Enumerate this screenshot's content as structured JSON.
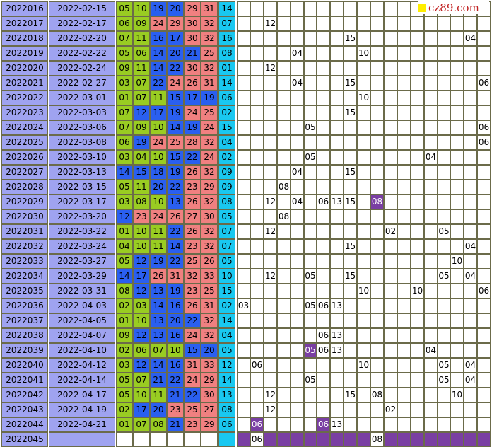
{
  "watermark": "cz89.com",
  "rows": [
    {
      "issue": "2022016",
      "date": "2022-02-15",
      "nums": [
        "05",
        "10",
        "19",
        "20",
        "29",
        "31"
      ],
      "cls": [
        "g",
        "g",
        "b",
        "b",
        "r",
        "r"
      ],
      "blue": "14",
      "hits": []
    },
    {
      "issue": "2022017",
      "date": "2022-02-17",
      "nums": [
        "06",
        "09",
        "24",
        "29",
        "30",
        "32"
      ],
      "cls": [
        "g",
        "g",
        "r",
        "r",
        "r",
        "r"
      ],
      "blue": "07",
      "hits": [
        {
          "col": 2,
          "v": "12"
        }
      ]
    },
    {
      "issue": "2022018",
      "date": "2022-02-20",
      "nums": [
        "07",
        "11",
        "16",
        "17",
        "30",
        "32"
      ],
      "cls": [
        "g",
        "g",
        "b",
        "b",
        "r",
        "r"
      ],
      "blue": "16",
      "hits": [
        {
          "col": 8,
          "v": "15"
        },
        {
          "col": 17,
          "v": "04"
        }
      ]
    },
    {
      "issue": "2022019",
      "date": "2022-02-22",
      "nums": [
        "05",
        "06",
        "14",
        "20",
        "21",
        "25"
      ],
      "cls": [
        "g",
        "g",
        "b",
        "b",
        "b",
        "r"
      ],
      "blue": "08",
      "hits": [
        {
          "col": 4,
          "v": "04"
        },
        {
          "col": 9,
          "v": "10"
        }
      ]
    },
    {
      "issue": "2022020",
      "date": "2022-02-24",
      "nums": [
        "09",
        "11",
        "14",
        "22",
        "30",
        "32"
      ],
      "cls": [
        "g",
        "g",
        "b",
        "b",
        "r",
        "r"
      ],
      "blue": "01",
      "hits": [
        {
          "col": 2,
          "v": "12"
        }
      ]
    },
    {
      "issue": "2022021",
      "date": "2022-02-27",
      "nums": [
        "03",
        "07",
        "22",
        "24",
        "26",
        "31"
      ],
      "cls": [
        "g",
        "g",
        "b",
        "r",
        "r",
        "r"
      ],
      "blue": "14",
      "hits": [
        {
          "col": 4,
          "v": "04"
        },
        {
          "col": 8,
          "v": "15"
        },
        {
          "col": 18,
          "v": "06"
        }
      ]
    },
    {
      "issue": "2022022",
      "date": "2022-03-01",
      "nums": [
        "01",
        "07",
        "11",
        "15",
        "17",
        "19"
      ],
      "cls": [
        "g",
        "g",
        "g",
        "b",
        "b",
        "b"
      ],
      "blue": "06",
      "hits": [
        {
          "col": 9,
          "v": "10"
        }
      ]
    },
    {
      "issue": "2022023",
      "date": "2022-03-03",
      "nums": [
        "07",
        "12",
        "17",
        "19",
        "24",
        "25"
      ],
      "cls": [
        "g",
        "b",
        "b",
        "b",
        "r",
        "r"
      ],
      "blue": "02",
      "hits": [
        {
          "col": 8,
          "v": "15"
        }
      ]
    },
    {
      "issue": "2022024",
      "date": "2022-03-06",
      "nums": [
        "07",
        "09",
        "10",
        "14",
        "19",
        "24"
      ],
      "cls": [
        "g",
        "g",
        "g",
        "b",
        "b",
        "r"
      ],
      "blue": "15",
      "hits": [
        {
          "col": 5,
          "v": "05"
        },
        {
          "col": 18,
          "v": "06"
        }
      ]
    },
    {
      "issue": "2022025",
      "date": "2022-03-08",
      "nums": [
        "06",
        "19",
        "24",
        "25",
        "28",
        "32"
      ],
      "cls": [
        "g",
        "b",
        "r",
        "r",
        "r",
        "r"
      ],
      "blue": "04",
      "hits": [
        {
          "col": 18,
          "v": "06"
        }
      ]
    },
    {
      "issue": "2022026",
      "date": "2022-03-10",
      "nums": [
        "03",
        "04",
        "10",
        "15",
        "22",
        "24"
      ],
      "cls": [
        "g",
        "g",
        "g",
        "b",
        "b",
        "r"
      ],
      "blue": "02",
      "hits": [
        {
          "col": 5,
          "v": "05"
        },
        {
          "col": 14,
          "v": "04"
        }
      ]
    },
    {
      "issue": "2022027",
      "date": "2022-03-13",
      "nums": [
        "14",
        "15",
        "18",
        "19",
        "26",
        "32"
      ],
      "cls": [
        "b",
        "b",
        "b",
        "b",
        "r",
        "r"
      ],
      "blue": "09",
      "hits": [
        {
          "col": 4,
          "v": "04"
        },
        {
          "col": 8,
          "v": "15"
        }
      ]
    },
    {
      "issue": "2022028",
      "date": "2022-03-15",
      "nums": [
        "05",
        "11",
        "20",
        "22",
        "23",
        "29"
      ],
      "cls": [
        "g",
        "g",
        "b",
        "b",
        "r",
        "r"
      ],
      "blue": "09",
      "hits": [
        {
          "col": 3,
          "v": "08"
        }
      ]
    },
    {
      "issue": "2022029",
      "date": "2022-03-17",
      "nums": [
        "03",
        "08",
        "10",
        "13",
        "26",
        "32"
      ],
      "cls": [
        "g",
        "g",
        "g",
        "b",
        "r",
        "r"
      ],
      "blue": "08",
      "hits": [
        {
          "col": 2,
          "v": "12"
        },
        {
          "col": 4,
          "v": "04"
        },
        {
          "col": 6,
          "v": "06"
        },
        {
          "col": 7,
          "v": "13"
        },
        {
          "col": 8,
          "v": "15"
        },
        {
          "col": 10,
          "v": "08",
          "hl": true
        }
      ]
    },
    {
      "issue": "2022030",
      "date": "2022-03-20",
      "nums": [
        "12",
        "23",
        "24",
        "26",
        "27",
        "30"
      ],
      "cls": [
        "b",
        "r",
        "r",
        "r",
        "r",
        "r"
      ],
      "blue": "05",
      "hits": [
        {
          "col": 3,
          "v": "08"
        }
      ]
    },
    {
      "issue": "2022031",
      "date": "2022-03-22",
      "nums": [
        "01",
        "10",
        "11",
        "22",
        "26",
        "32"
      ],
      "cls": [
        "g",
        "g",
        "g",
        "b",
        "r",
        "r"
      ],
      "blue": "07",
      "hits": [
        {
          "col": 2,
          "v": "12"
        },
        {
          "col": 11,
          "v": "02"
        },
        {
          "col": 15,
          "v": "05"
        }
      ]
    },
    {
      "issue": "2022032",
      "date": "2022-03-24",
      "nums": [
        "04",
        "10",
        "11",
        "14",
        "23",
        "32"
      ],
      "cls": [
        "g",
        "g",
        "g",
        "b",
        "r",
        "r"
      ],
      "blue": "07",
      "hits": [
        {
          "col": 8,
          "v": "15"
        },
        {
          "col": 17,
          "v": "04"
        }
      ]
    },
    {
      "issue": "2022033",
      "date": "2022-03-27",
      "nums": [
        "05",
        "12",
        "19",
        "22",
        "25",
        "26"
      ],
      "cls": [
        "g",
        "b",
        "b",
        "b",
        "r",
        "r"
      ],
      "blue": "05",
      "hits": [
        {
          "col": 16,
          "v": "10"
        }
      ]
    },
    {
      "issue": "2022034",
      "date": "2022-03-29",
      "nums": [
        "14",
        "17",
        "26",
        "31",
        "32",
        "33"
      ],
      "cls": [
        "b",
        "b",
        "r",
        "r",
        "r",
        "r"
      ],
      "blue": "10",
      "hits": [
        {
          "col": 2,
          "v": "12"
        },
        {
          "col": 5,
          "v": "05"
        },
        {
          "col": 8,
          "v": "15"
        },
        {
          "col": 15,
          "v": "05"
        },
        {
          "col": 17,
          "v": "04"
        }
      ]
    },
    {
      "issue": "2022035",
      "date": "2022-03-31",
      "nums": [
        "08",
        "12",
        "13",
        "19",
        "23",
        "25"
      ],
      "cls": [
        "g",
        "b",
        "b",
        "b",
        "r",
        "r"
      ],
      "blue": "15",
      "hits": [
        {
          "col": 9,
          "v": "10"
        },
        {
          "col": 13,
          "v": "10"
        },
        {
          "col": 18,
          "v": "06"
        }
      ]
    },
    {
      "issue": "2022036",
      "date": "2022-04-03",
      "nums": [
        "02",
        "03",
        "14",
        "16",
        "26",
        "31"
      ],
      "cls": [
        "g",
        "g",
        "b",
        "b",
        "r",
        "r"
      ],
      "blue": "02",
      "hits": [
        {
          "col": 0,
          "v": "03"
        },
        {
          "col": 5,
          "v": "05"
        },
        {
          "col": 6,
          "v": "06"
        },
        {
          "col": 7,
          "v": "13"
        }
      ]
    },
    {
      "issue": "2022037",
      "date": "2022-04-05",
      "nums": [
        "01",
        "10",
        "13",
        "20",
        "22",
        "32"
      ],
      "cls": [
        "g",
        "g",
        "b",
        "b",
        "b",
        "r"
      ],
      "blue": "14",
      "hits": []
    },
    {
      "issue": "2022038",
      "date": "2022-04-07",
      "nums": [
        "09",
        "12",
        "13",
        "16",
        "24",
        "32"
      ],
      "cls": [
        "g",
        "b",
        "b",
        "b",
        "r",
        "r"
      ],
      "blue": "04",
      "hits": [
        {
          "col": 6,
          "v": "06"
        },
        {
          "col": 7,
          "v": "13"
        }
      ]
    },
    {
      "issue": "2022039",
      "date": "2022-04-10",
      "nums": [
        "02",
        "06",
        "07",
        "10",
        "15",
        "20"
      ],
      "cls": [
        "g",
        "g",
        "g",
        "g",
        "b",
        "b"
      ],
      "blue": "05",
      "hits": [
        {
          "col": 5,
          "v": "05",
          "hl": true
        },
        {
          "col": 6,
          "v": "06"
        },
        {
          "col": 7,
          "v": "13"
        },
        {
          "col": 14,
          "v": "04"
        }
      ]
    },
    {
      "issue": "2022040",
      "date": "2022-04-12",
      "nums": [
        "03",
        "12",
        "14",
        "16",
        "31",
        "33"
      ],
      "cls": [
        "g",
        "b",
        "b",
        "b",
        "r",
        "r"
      ],
      "blue": "12",
      "hits": [
        {
          "col": 1,
          "v": "06"
        },
        {
          "col": 9,
          "v": "10"
        },
        {
          "col": 15,
          "v": "05"
        },
        {
          "col": 17,
          "v": "04"
        }
      ]
    },
    {
      "issue": "2022041",
      "date": "2022-04-14",
      "nums": [
        "05",
        "07",
        "21",
        "22",
        "24",
        "29"
      ],
      "cls": [
        "g",
        "g",
        "b",
        "b",
        "r",
        "r"
      ],
      "blue": "14",
      "hits": [
        {
          "col": 5,
          "v": "05"
        },
        {
          "col": 15,
          "v": "05"
        },
        {
          "col": 17,
          "v": "04"
        }
      ]
    },
    {
      "issue": "2022042",
      "date": "2022-04-17",
      "nums": [
        "05",
        "10",
        "11",
        "21",
        "22",
        "30"
      ],
      "cls": [
        "g",
        "g",
        "g",
        "b",
        "b",
        "r"
      ],
      "blue": "13",
      "hits": [
        {
          "col": 2,
          "v": "12"
        },
        {
          "col": 8,
          "v": "15"
        },
        {
          "col": 10,
          "v": "08"
        },
        {
          "col": 16,
          "v": "10"
        }
      ]
    },
    {
      "issue": "2022043",
      "date": "2022-04-19",
      "nums": [
        "02",
        "17",
        "20",
        "23",
        "25",
        "27"
      ],
      "cls": [
        "g",
        "b",
        "b",
        "r",
        "r",
        "r"
      ],
      "blue": "08",
      "hits": [
        {
          "col": 2,
          "v": "12"
        },
        {
          "col": 11,
          "v": "02"
        }
      ]
    },
    {
      "issue": "2022044",
      "date": "2022-04-21",
      "nums": [
        "01",
        "07",
        "08",
        "21",
        "23",
        "29"
      ],
      "cls": [
        "g",
        "g",
        "g",
        "b",
        "r",
        "r"
      ],
      "blue": "06",
      "hits": [
        {
          "col": 1,
          "v": "06",
          "hl": true
        },
        {
          "col": 6,
          "v": "06",
          "hl": true
        },
        {
          "col": 7,
          "v": "13"
        }
      ]
    }
  ],
  "last_row": {
    "issue": "2022045",
    "hits": [
      {
        "col": 1,
        "v": "06"
      },
      {
        "col": 10,
        "v": "08"
      }
    ],
    "bar_cols": [
      0,
      2,
      3,
      4,
      5,
      6,
      7,
      8,
      9,
      11,
      12,
      13,
      14,
      15,
      16,
      17,
      18
    ]
  }
}
